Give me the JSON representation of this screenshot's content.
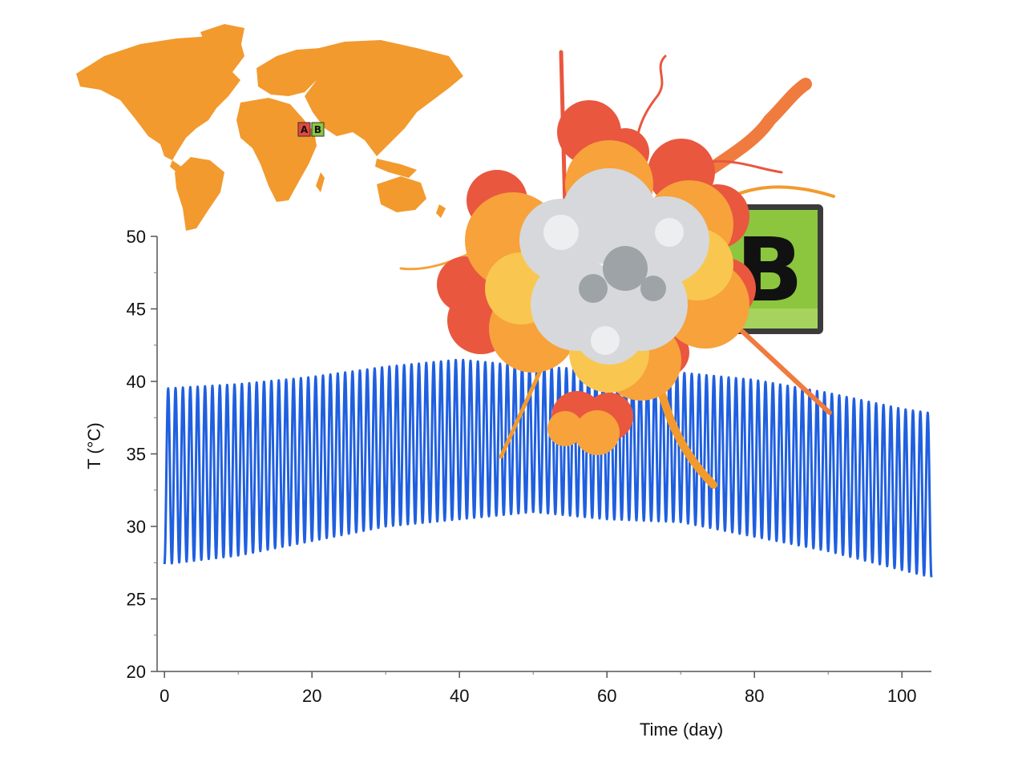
{
  "colors": {
    "land": "#f29a2e",
    "series": "#1f5fe0",
    "badge_a": "#e5483b",
    "badge_b": "#8cc63f",
    "explosion_red": "#e9573f",
    "explosion_orange": "#f7a23b",
    "explosion_yellow": "#f9c74f",
    "smoke": "#d6d8db",
    "smoke_dark": "#9ea3a8"
  },
  "map": {
    "label_a": "A",
    "label_b": "B"
  },
  "container_badge": {
    "label": "B"
  },
  "chart_data": {
    "type": "line",
    "title": "",
    "xlabel": "Time (day)",
    "ylabel": "T (°C)",
    "xlim": [
      -1,
      104
    ],
    "ylim": [
      20,
      50
    ],
    "xticks": [
      0,
      20,
      40,
      60,
      80,
      100
    ],
    "yticks": [
      20,
      25,
      30,
      35,
      40,
      45,
      50
    ],
    "grid": false,
    "legend": "none",
    "cycle_period_days": 1,
    "series": [
      {
        "description_values": "daily max / min envelope (°C)",
        "x": [
          0,
          10,
          20,
          30,
          40,
          50,
          60,
          70,
          80,
          90,
          100,
          104
        ],
        "daily_max": [
          39.5,
          39.8,
          40.3,
          41.0,
          41.5,
          41.0,
          40.8,
          40.6,
          40.1,
          39.2,
          38.1,
          37.8
        ],
        "daily_min": [
          27.4,
          28.0,
          29.0,
          30.0,
          30.5,
          31.0,
          30.5,
          30.3,
          29.3,
          28.3,
          27.0,
          26.5
        ]
      }
    ]
  }
}
